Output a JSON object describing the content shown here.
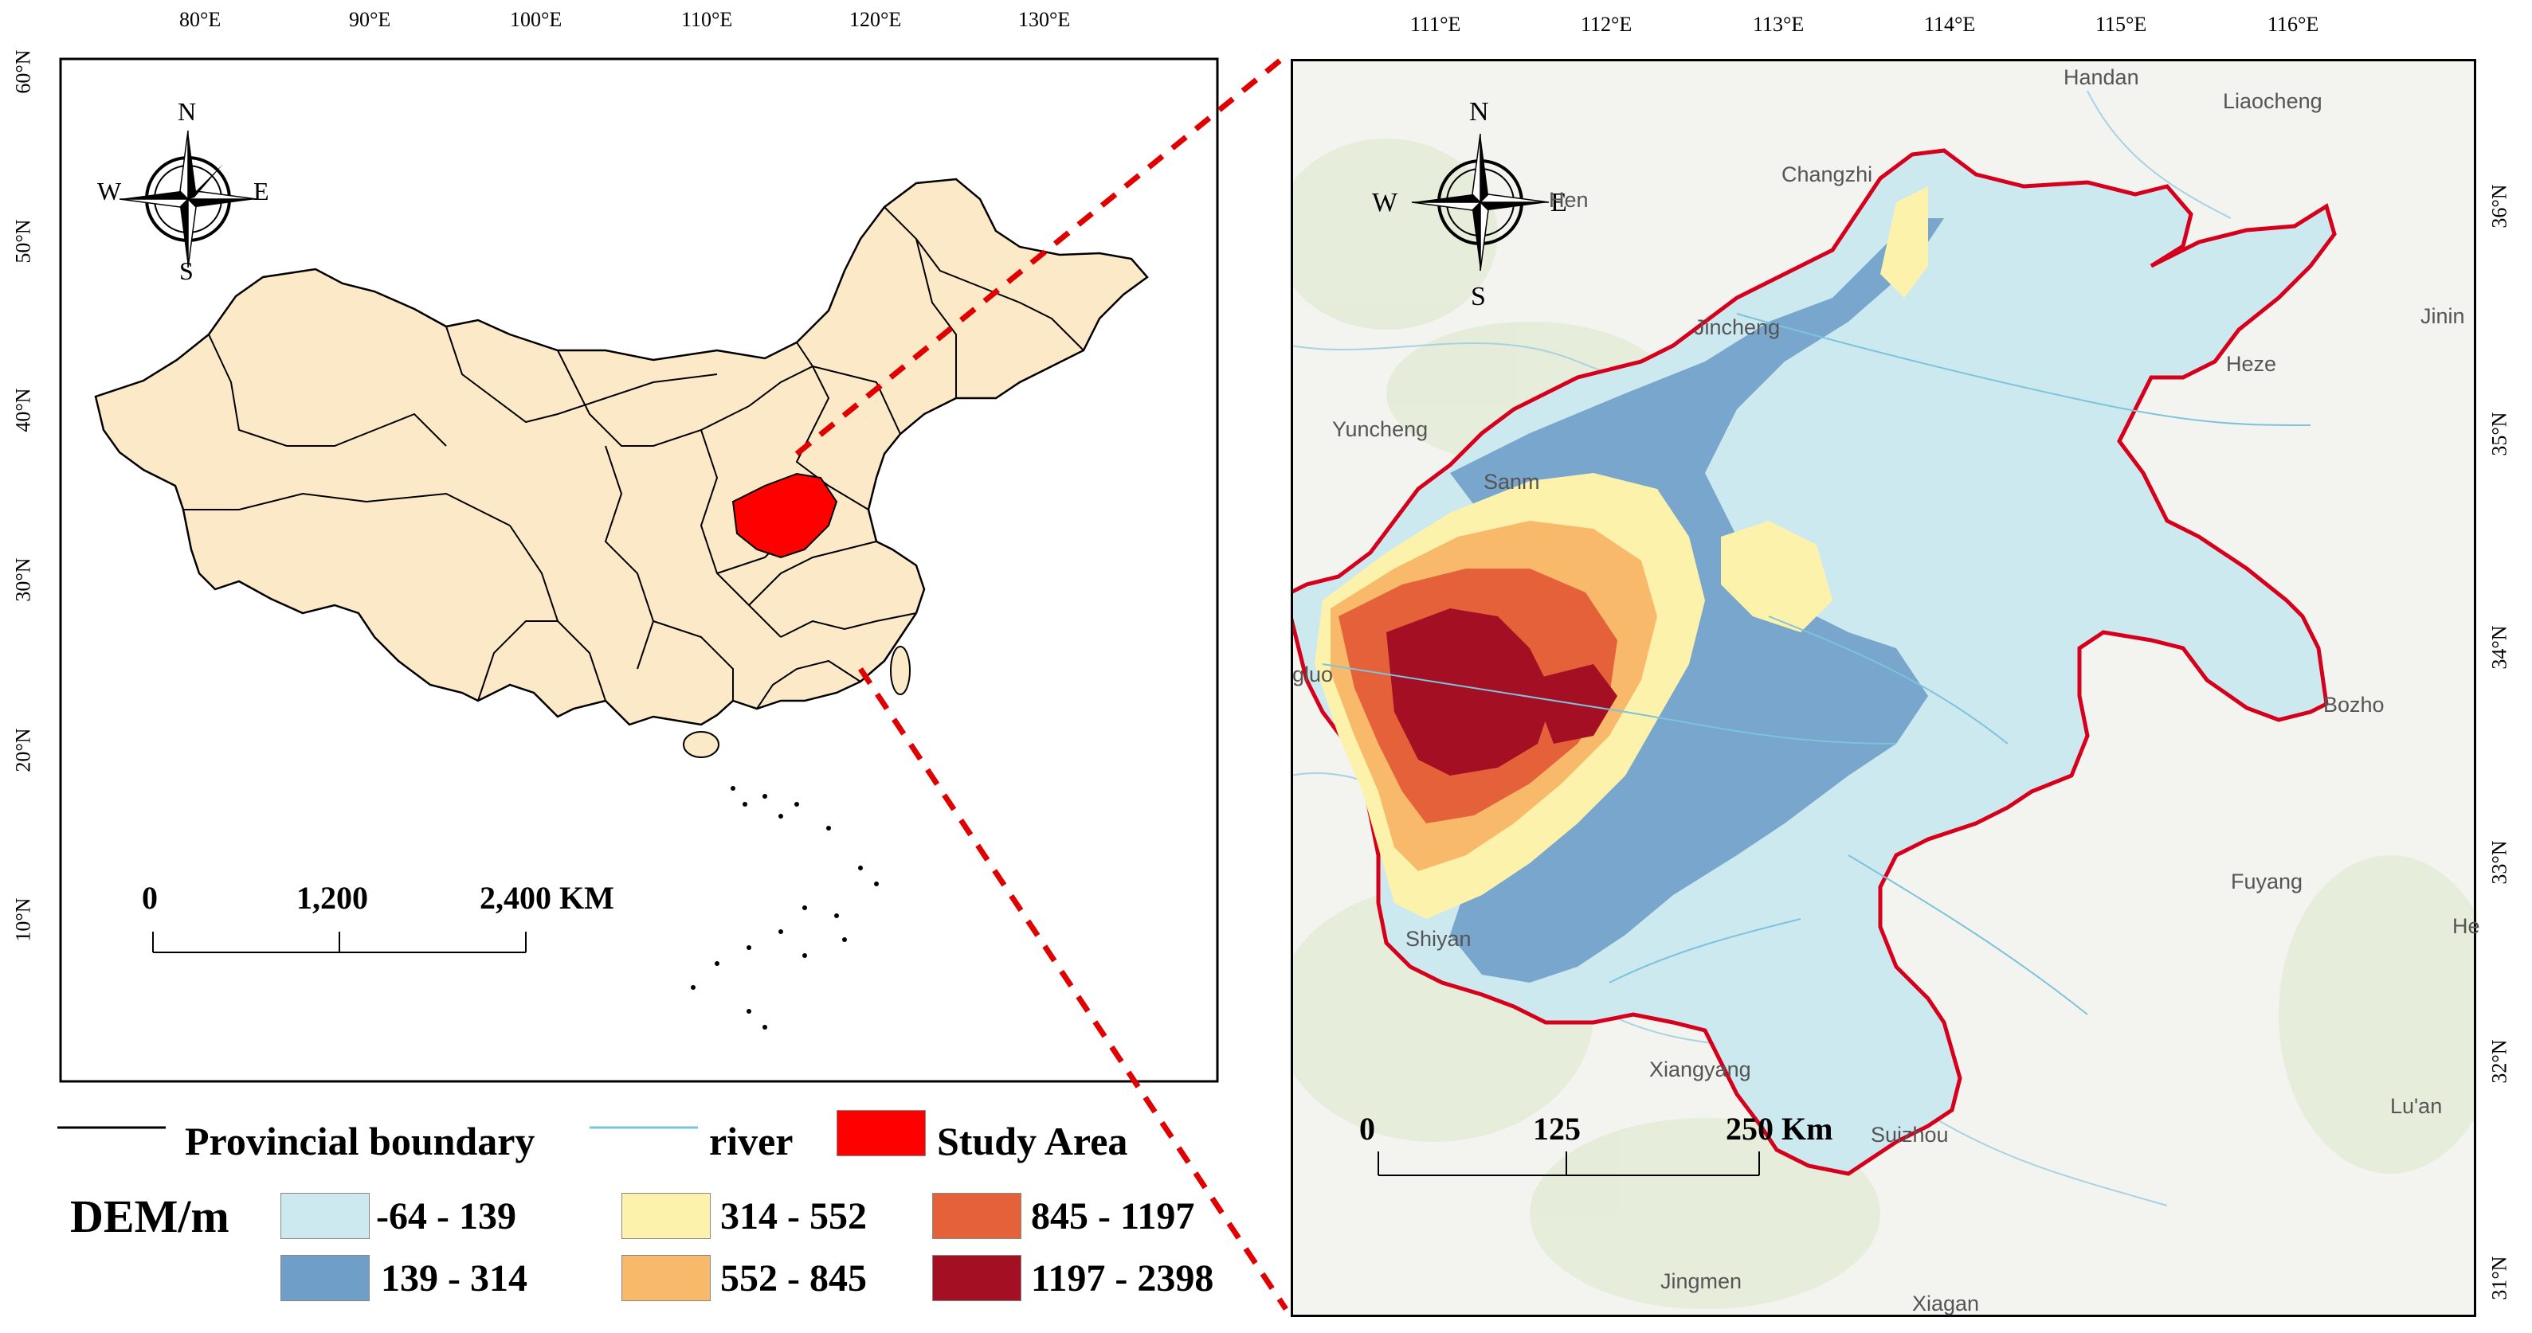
{
  "left_map": {
    "lon_ticks": [
      "80°E",
      "90°E",
      "100°E",
      "110°E",
      "120°E",
      "130°E"
    ],
    "lat_ticks": [
      "60°N",
      "50°N",
      "40°N",
      "30°N",
      "20°N",
      "10°N"
    ],
    "scale": {
      "labels": [
        "0",
        "1,200",
        "2,400 KM"
      ]
    },
    "north_arrow": {
      "n": "N",
      "s": "S",
      "w": "W",
      "e": "E"
    }
  },
  "right_map": {
    "lon_ticks": [
      "111°E",
      "112°E",
      "113°E",
      "114°E",
      "115°E",
      "116°E"
    ],
    "lat_ticks": [
      "36°N",
      "35°N",
      "34°N",
      "33°N",
      "32°N",
      "31°N"
    ],
    "scale": {
      "labels": [
        "0",
        "125",
        "250 Km"
      ]
    },
    "north_arrow": {
      "n": "N",
      "s": "S",
      "w": "W",
      "e": "E"
    },
    "cities": [
      "Handan",
      "Liaocheng",
      "Changzhi",
      "Jincheng",
      "Yuncheng",
      "Heze",
      "Jinin",
      "Bozho",
      "Fuyang",
      "Shiyan",
      "Xiangyang",
      "Suizhou",
      "Jingmen",
      "Lu'an",
      "gluo",
      "Sanm",
      "Hen",
      "He",
      "Xiagan"
    ]
  },
  "legend": {
    "provincial_boundary": "Provincial boundary",
    "river": "river",
    "study_area": "Study Area",
    "dem_title": "DEM/m",
    "classes": [
      {
        "label": "-64 - 139",
        "color": "#cde9f0"
      },
      {
        "label": "139 - 314",
        "color": "#6f9fc8"
      },
      {
        "label": "314 - 552",
        "color": "#fdf2ac"
      },
      {
        "label": "552 - 845",
        "color": "#f8b96b"
      },
      {
        "label": "845 - 1197",
        "color": "#e4613a"
      },
      {
        "label": "1197 - 2398",
        "color": "#a50f24"
      }
    ]
  },
  "colors": {
    "china_fill": "#fce9c8",
    "study_area": "#ff0000",
    "river": "#7cc3dc",
    "boundary_red": "#d6001c",
    "connector": "#e00000"
  }
}
